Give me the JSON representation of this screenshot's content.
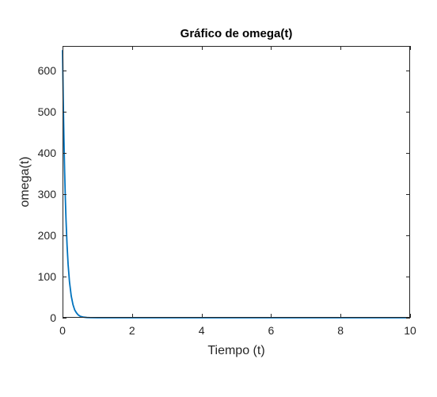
{
  "chart_data": {
    "type": "line",
    "title": "Gráfico de omega(t)",
    "xlabel": "Tiempo (t)",
    "ylabel": "omega(t)",
    "xlim": [
      0,
      10
    ],
    "ylim": [
      0,
      660
    ],
    "xticks": [
      0,
      2,
      4,
      6,
      8,
      10
    ],
    "yticks": [
      0,
      100,
      200,
      300,
      400,
      500,
      600
    ],
    "xtick_labels": [
      "0",
      "2",
      "4",
      "6",
      "8",
      "10"
    ],
    "ytick_labels": [
      "0",
      "100",
      "200",
      "300",
      "400",
      "500",
      "600"
    ],
    "grid": false,
    "box": true,
    "series": [
      {
        "color": "#0072BD",
        "x": [
          0,
          0.02,
          0.04,
          0.06,
          0.08,
          0.1,
          0.13,
          0.16,
          0.2,
          0.25,
          0.3,
          0.35,
          0.4,
          0.45,
          0.5,
          0.55,
          0.6,
          0.7,
          0.8,
          1.0,
          1.5,
          2,
          3,
          4,
          5,
          6,
          7,
          8,
          9,
          10
        ],
        "y": [
          650,
          531,
          435,
          356,
          291,
          238,
          176,
          130,
          87,
          53,
          32,
          19,
          12,
          7,
          4,
          2.6,
          1.6,
          0.6,
          0.2,
          0.03,
          0,
          0,
          0,
          0,
          0,
          0,
          0,
          0,
          0,
          0
        ]
      }
    ]
  }
}
